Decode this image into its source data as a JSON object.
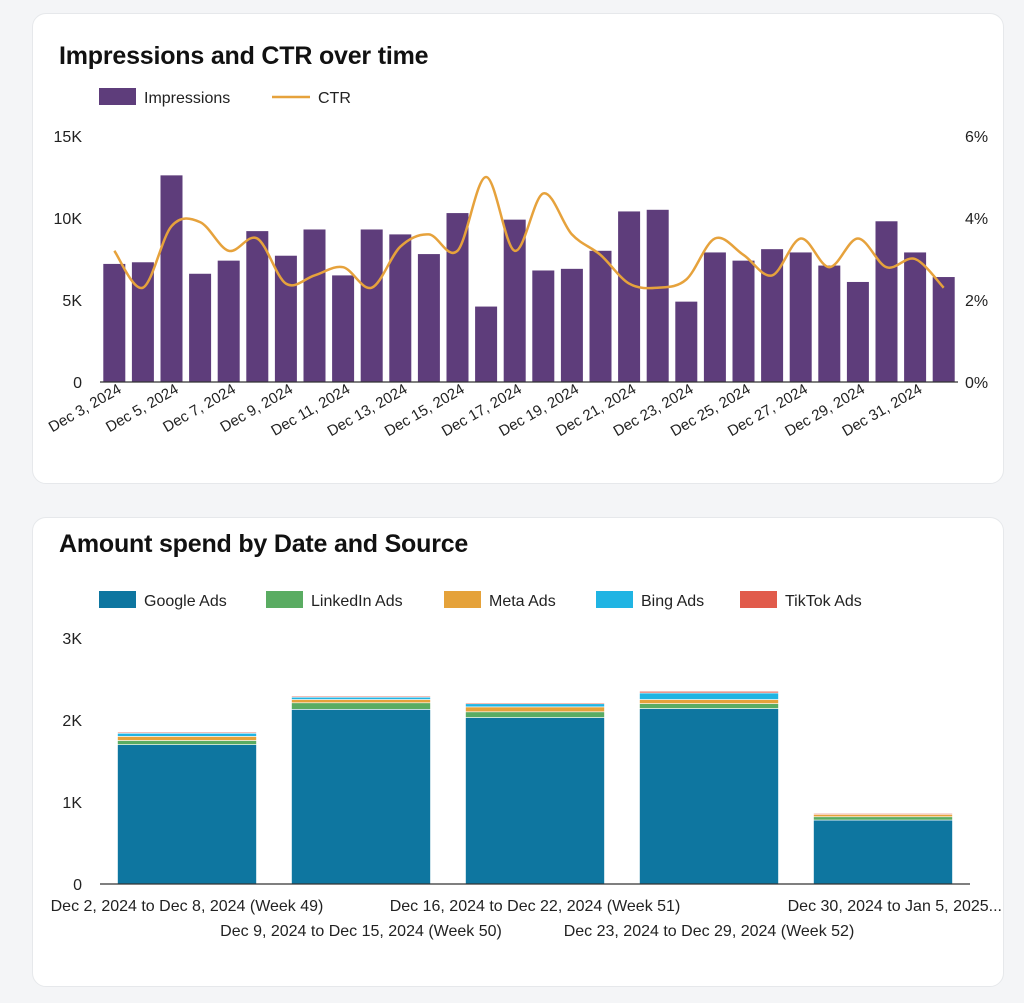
{
  "charts": [
    {
      "title": "Impressions and CTR over time"
    },
    {
      "title": "Amount spend by Date and Source"
    }
  ],
  "chart_data": [
    {
      "type": "bar",
      "title": "Impressions and CTR over time",
      "combo": "bar+line",
      "x": [
        "Dec 3, 2024",
        "Dec 4, 2024",
        "Dec 5, 2024",
        "Dec 6, 2024",
        "Dec 7, 2024",
        "Dec 8, 2024",
        "Dec 9, 2024",
        "Dec 10, 2024",
        "Dec 11, 2024",
        "Dec 12, 2024",
        "Dec 13, 2024",
        "Dec 14, 2024",
        "Dec 15, 2024",
        "Dec 16, 2024",
        "Dec 17, 2024",
        "Dec 18, 2024",
        "Dec 19, 2024",
        "Dec 20, 2024",
        "Dec 21, 2024",
        "Dec 22, 2024",
        "Dec 23, 2024",
        "Dec 24, 2024",
        "Dec 25, 2024",
        "Dec 26, 2024",
        "Dec 27, 2024",
        "Dec 28, 2024",
        "Dec 29, 2024",
        "Dec 30, 2024",
        "Dec 31, 2024",
        "Jan 1, 2025"
      ],
      "x_tick_labels": [
        "Dec 3, 2024",
        "Dec 5, 2024",
        "Dec 7, 2024",
        "Dec 9, 2024",
        "Dec 11, 2024",
        "Dec 13, 2024",
        "Dec 15, 2024",
        "Dec 17, 2024",
        "Dec 19, 2024",
        "Dec 21, 2024",
        "Dec 23, 2024",
        "Dec 25, 2024",
        "Dec 27, 2024",
        "Dec 29, 2024",
        "Dec 31, 2024"
      ],
      "series": [
        {
          "name": "Impressions",
          "kind": "bar",
          "axis": "left",
          "color": "#5e3d7b",
          "values": [
            7200,
            7300,
            12600,
            6600,
            7400,
            9200,
            7700,
            9300,
            6500,
            9300,
            9000,
            7800,
            10300,
            4600,
            9900,
            6800,
            6900,
            8000,
            10400,
            10500,
            4900,
            7900,
            7400,
            8100,
            7900,
            7100,
            6100,
            9800,
            7900,
            6400
          ]
        },
        {
          "name": "CTR",
          "kind": "line",
          "axis": "right",
          "color": "#e6a23c",
          "values": [
            3.2,
            2.3,
            3.8,
            3.9,
            3.2,
            3.5,
            2.4,
            2.6,
            2.8,
            2.3,
            3.3,
            3.6,
            3.2,
            5.0,
            3.2,
            4.6,
            3.6,
            3.1,
            2.4,
            2.3,
            2.5,
            3.5,
            3.1,
            2.6,
            3.5,
            2.8,
            3.5,
            2.8,
            3.0,
            2.3
          ]
        }
      ],
      "yaxis_left": {
        "range": [
          0,
          15000
        ],
        "ticks": [
          "0",
          "5K",
          "10K",
          "15K"
        ]
      },
      "yaxis_right": {
        "range": [
          0,
          6
        ],
        "ticks": [
          "0%",
          "2%",
          "4%",
          "6%"
        ]
      },
      "legend": "top-left",
      "grid": false
    },
    {
      "type": "bar",
      "stacked": true,
      "title": "Amount spend by Date and Source",
      "categories": [
        "Dec 2, 2024 to Dec 8, 2024 (Week 49)",
        "Dec 9, 2024 to Dec 15, 2024 (Week 50)",
        "Dec 16, 2024 to Dec 22, 2024 (Week 51)",
        "Dec 23, 2024 to Dec 29, 2024 (Week 52)",
        "Dec 30, 2024 to Jan 5, 2025..."
      ],
      "series": [
        {
          "name": "Google Ads",
          "color": "#0e76a0",
          "values": [
            1700,
            2130,
            2030,
            2140,
            780
          ]
        },
        {
          "name": "LinkedIn Ads",
          "color": "#5aac62",
          "values": [
            50,
            80,
            70,
            60,
            40
          ]
        },
        {
          "name": "Meta Ads",
          "color": "#e5a23a",
          "values": [
            50,
            40,
            60,
            50,
            30
          ]
        },
        {
          "name": "Bing Ads",
          "color": "#20b4e3",
          "values": [
            40,
            30,
            40,
            80,
            0
          ]
        },
        {
          "name": "TikTok Ads",
          "color": "#e15b4b",
          "values": [
            10,
            10,
            10,
            20,
            10
          ]
        }
      ],
      "ylim": [
        0,
        3000
      ],
      "y_ticks": [
        "0",
        "1K",
        "2K",
        "3K"
      ],
      "legend": "top-left",
      "grid": false
    }
  ]
}
